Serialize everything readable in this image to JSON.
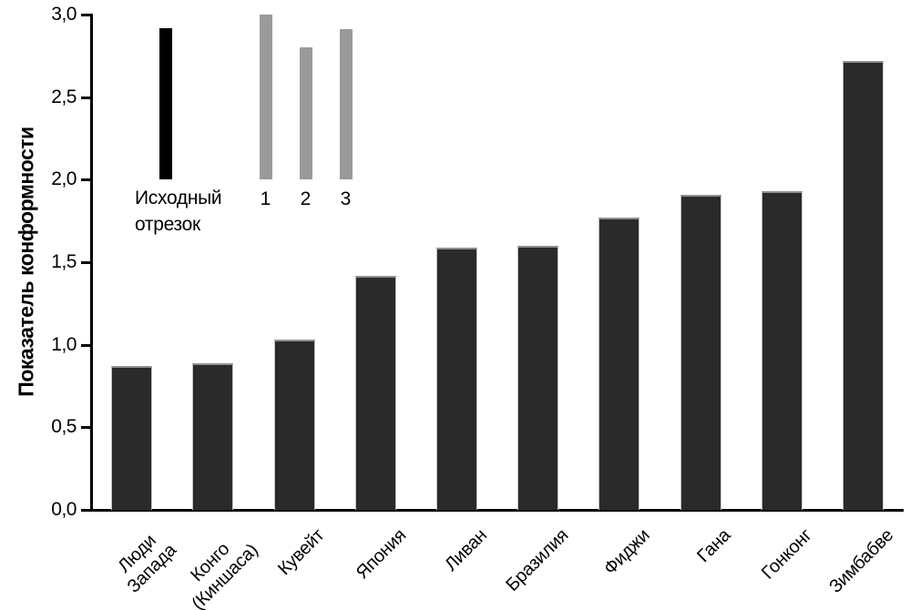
{
  "chart_data": {
    "type": "bar",
    "title": "",
    "xlabel": "",
    "ylabel": "Показатель конформности",
    "ylim": [
      0,
      3
    ],
    "grid": false,
    "legend_position": "none",
    "yticks": [
      {
        "v": 0.0,
        "label": "0,0"
      },
      {
        "v": 0.5,
        "label": "0,5"
      },
      {
        "v": 1.0,
        "label": "1,0"
      },
      {
        "v": 1.5,
        "label": "1,5"
      },
      {
        "v": 2.0,
        "label": "2,0"
      },
      {
        "v": 2.5,
        "label": "2,5"
      },
      {
        "v": 3.0,
        "label": "3,0"
      }
    ],
    "categories": [
      "Люди Запада",
      "Конго (Киншаса)",
      "Кувейт",
      "Япония",
      "Ливан",
      "Бразилия",
      "Фиджи",
      "Гана",
      "Гонконг",
      "Зимбабве"
    ],
    "category_label_lines": [
      [
        "Люди",
        "Запада"
      ],
      [
        "Конго",
        "(Киншаса)"
      ],
      [
        "Кувейт"
      ],
      [
        "Япония"
      ],
      [
        "Ливан"
      ],
      [
        "Бразилия"
      ],
      [
        "Фиджи"
      ],
      [
        "Гана"
      ],
      [
        "Гонконг"
      ],
      [
        "Зимбабве"
      ]
    ],
    "values": [
      0.87,
      0.89,
      1.03,
      1.42,
      1.59,
      1.6,
      1.77,
      1.91,
      1.93,
      2.72
    ],
    "stimulus_inset": {
      "standard_label_lines": [
        "Исходный",
        "отрезок"
      ],
      "standard": {
        "from": 2.0,
        "to": 2.92
      },
      "comparisons": [
        {
          "label": "1",
          "from": 2.0,
          "to": 3.0
        },
        {
          "label": "2",
          "from": 2.0,
          "to": 2.8
        },
        {
          "label": "3",
          "from": 2.0,
          "to": 2.91
        }
      ]
    }
  },
  "colors": {
    "background": "#ffffff",
    "bar_fill": "#2a2a2a",
    "bar_edge_top": "#8f8f8f",
    "standard_line": "#000000",
    "comparison_line": "#9a9a9a",
    "axis": "#000000",
    "text": "#000000"
  }
}
